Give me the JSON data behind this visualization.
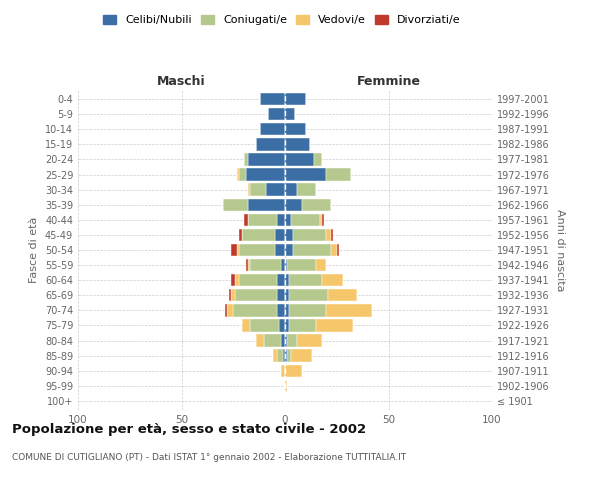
{
  "age_groups": [
    "100+",
    "95-99",
    "90-94",
    "85-89",
    "80-84",
    "75-79",
    "70-74",
    "65-69",
    "60-64",
    "55-59",
    "50-54",
    "45-49",
    "40-44",
    "35-39",
    "30-34",
    "25-29",
    "20-24",
    "15-19",
    "10-14",
    "5-9",
    "0-4"
  ],
  "birth_years": [
    "≤ 1901",
    "1902-1906",
    "1907-1911",
    "1912-1916",
    "1917-1921",
    "1922-1926",
    "1927-1931",
    "1932-1936",
    "1937-1941",
    "1942-1946",
    "1947-1951",
    "1952-1956",
    "1957-1961",
    "1962-1966",
    "1967-1971",
    "1972-1976",
    "1977-1981",
    "1982-1986",
    "1987-1991",
    "1992-1996",
    "1997-2001"
  ],
  "males": {
    "celibi": [
      0,
      0,
      0,
      1,
      2,
      3,
      4,
      4,
      4,
      2,
      5,
      5,
      4,
      18,
      9,
      19,
      18,
      14,
      12,
      8,
      12
    ],
    "coniugati": [
      0,
      0,
      0,
      3,
      8,
      14,
      21,
      20,
      18,
      15,
      17,
      16,
      14,
      12,
      8,
      3,
      2,
      0,
      0,
      0,
      0
    ],
    "vedovi": [
      0,
      0,
      2,
      2,
      4,
      4,
      3,
      2,
      2,
      1,
      1,
      0,
      0,
      0,
      1,
      1,
      0,
      0,
      0,
      0,
      0
    ],
    "divorziati": [
      0,
      0,
      0,
      0,
      0,
      0,
      1,
      1,
      2,
      1,
      3,
      1,
      2,
      0,
      0,
      0,
      0,
      0,
      0,
      0,
      0
    ]
  },
  "females": {
    "nubili": [
      0,
      0,
      0,
      1,
      1,
      2,
      2,
      2,
      2,
      1,
      4,
      4,
      3,
      8,
      6,
      20,
      14,
      12,
      10,
      5,
      10
    ],
    "coniugate": [
      0,
      0,
      0,
      2,
      5,
      13,
      18,
      19,
      16,
      14,
      18,
      16,
      14,
      14,
      9,
      12,
      4,
      0,
      0,
      0,
      0
    ],
    "vedove": [
      0,
      1,
      8,
      10,
      12,
      18,
      22,
      14,
      10,
      5,
      3,
      2,
      1,
      0,
      0,
      0,
      0,
      0,
      0,
      0,
      0
    ],
    "divorziate": [
      0,
      0,
      0,
      0,
      0,
      0,
      0,
      0,
      0,
      0,
      1,
      1,
      1,
      0,
      0,
      0,
      0,
      0,
      0,
      0,
      0
    ]
  },
  "colors": {
    "celibi": "#3a6ea5",
    "coniugati": "#b5c98e",
    "vedovi": "#f5c76a",
    "divorziati": "#c0392b"
  },
  "title": "Popolazione per età, sesso e stato civile - 2002",
  "subtitle": "COMUNE DI CUTIGLIANO (PT) - Dati ISTAT 1° gennaio 2002 - Elaborazione TUTTITALIA.IT",
  "xlabel_left": "Maschi",
  "xlabel_right": "Femmine",
  "ylabel_left": "Fasce di età",
  "ylabel_right": "Anni di nascita",
  "xlim": 100,
  "background_color": "#ffffff",
  "grid_color": "#cccccc"
}
